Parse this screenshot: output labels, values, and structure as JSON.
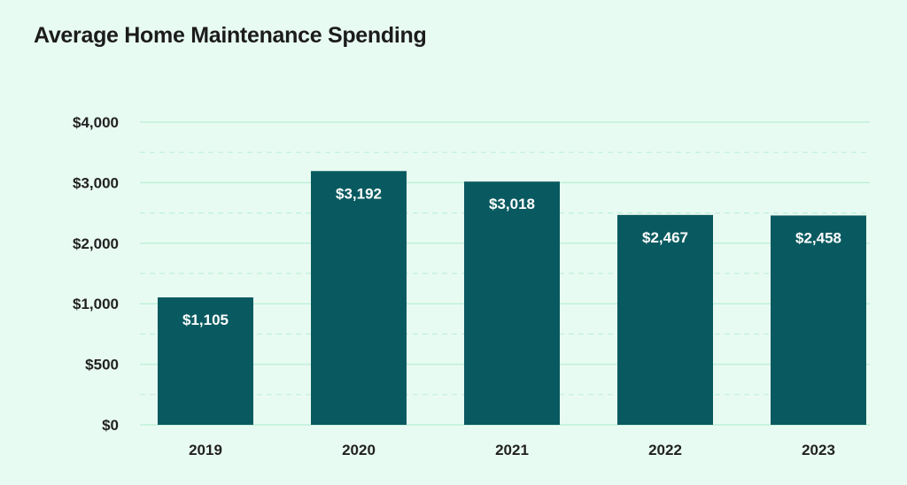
{
  "chart_data": {
    "type": "bar",
    "title": "Average Home Maintenance Spending",
    "categories": [
      "2019",
      "2020",
      "2021",
      "2022",
      "2023"
    ],
    "values": [
      1105,
      3192,
      3018,
      2467,
      2458
    ],
    "value_labels": [
      "$1,105",
      "$3,192",
      "$3,018",
      "$2,467",
      "$2,458"
    ],
    "y_ticks": [
      "$0",
      "$500",
      "$1,000",
      "$2,000",
      "$3,000",
      "$4,000"
    ],
    "y_tick_values": [
      0,
      500,
      1000,
      2000,
      3000,
      4000
    ],
    "xlabel": "",
    "ylabel": "",
    "grid": true,
    "colors": {
      "bar": "#095a60",
      "grid": "#bff0d9",
      "background": "#e8fbf2"
    }
  }
}
